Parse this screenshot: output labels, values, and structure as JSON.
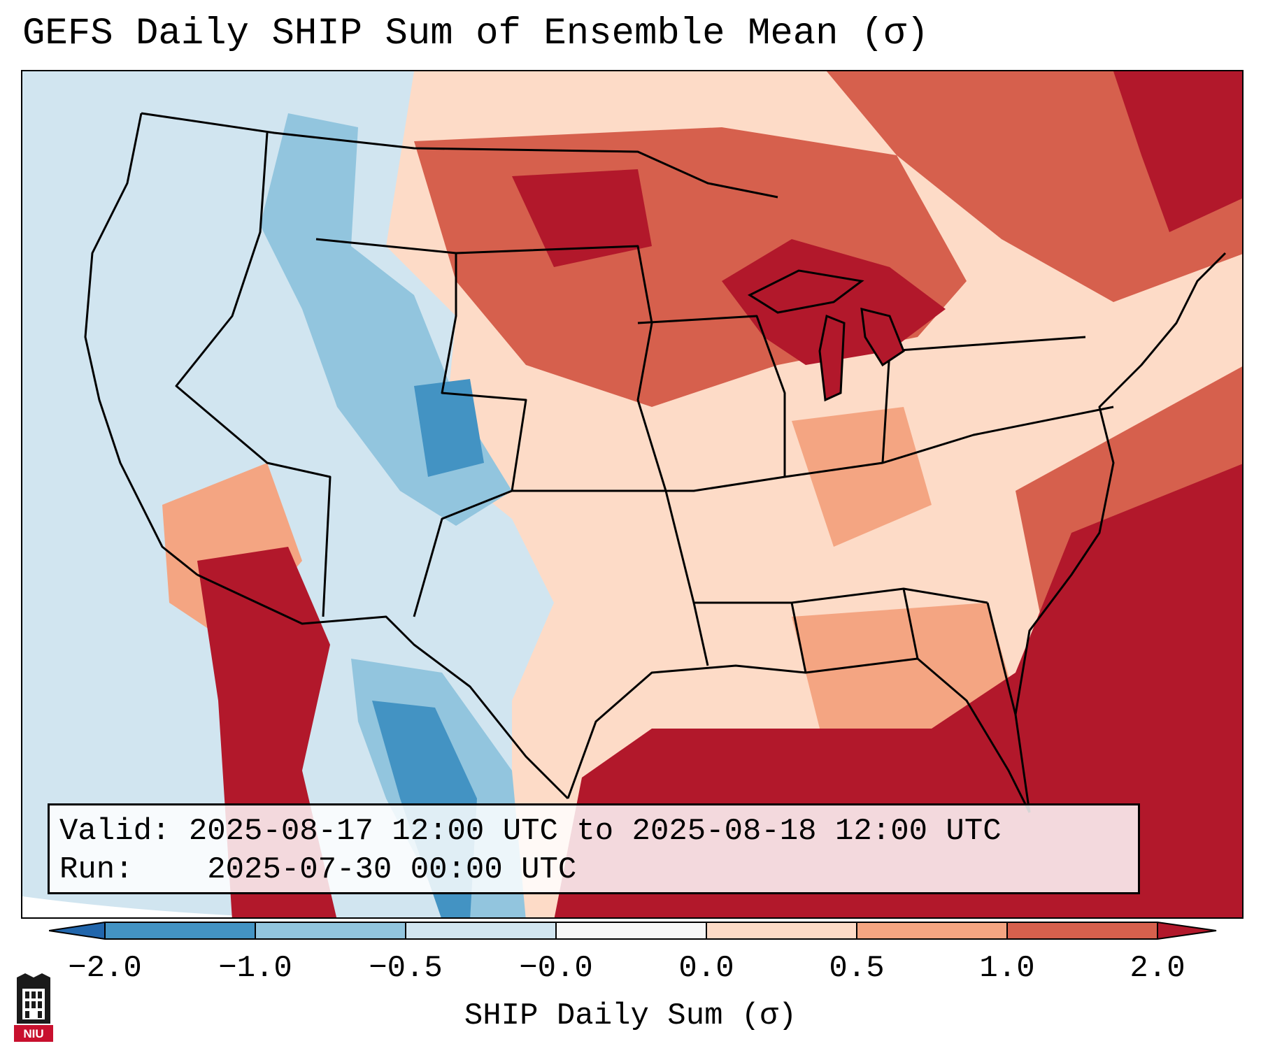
{
  "title": "GEFS Daily SHIP Sum of Ensemble Mean (σ)",
  "info": {
    "valid_label": "Valid:",
    "valid_value": "2025-08-17 12:00 UTC to 2025-08-18 12:00 UTC",
    "run_label": "Run:",
    "run_value": "2025-07-30 00:00 UTC"
  },
  "colorbar": {
    "label": "SHIP Daily Sum (σ)",
    "tick_labels": [
      "−2.0",
      "−1.0",
      "−0.5",
      "−0.0",
      "0.0",
      "0.5",
      "1.0",
      "2.0"
    ],
    "bins": [
      {
        "from": -2.0,
        "to": -1.0,
        "color": "#4393c3"
      },
      {
        "from": -1.0,
        "to": -0.5,
        "color": "#92c5de"
      },
      {
        "from": -0.5,
        "to": -0.0,
        "color": "#d1e5f0"
      },
      {
        "from": -0.0,
        "to": 0.0,
        "color": "#f7f7f7"
      },
      {
        "from": 0.0,
        "to": 0.5,
        "color": "#fddbc7"
      },
      {
        "from": 0.5,
        "to": 1.0,
        "color": "#f4a582"
      },
      {
        "from": 1.0,
        "to": 2.0,
        "color": "#d6604d"
      }
    ],
    "under_color": "#2166ac",
    "over_color": "#b2182b"
  },
  "map": {
    "projection": "Lambert Conformal",
    "region": "Contiguous United States",
    "ocean_color": "#d1e5f0",
    "gulf_color": "#b2182b",
    "atlantic_color": "#b2182b"
  },
  "logo": {
    "text": "NIU",
    "color": "#c8102e"
  }
}
